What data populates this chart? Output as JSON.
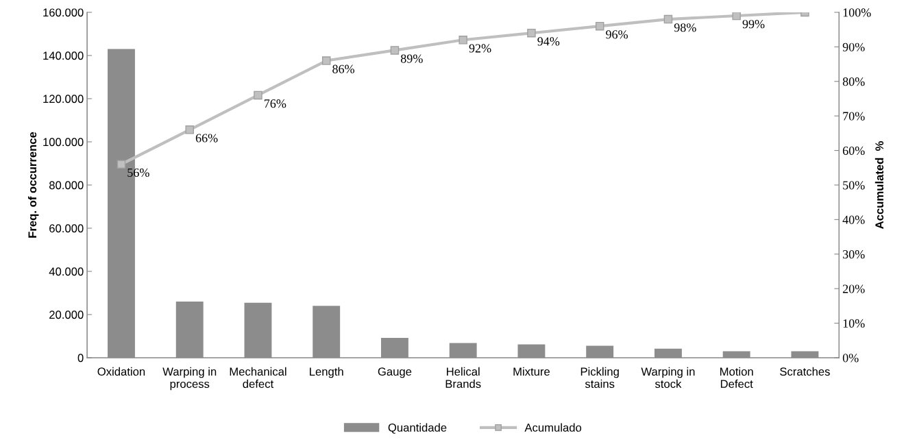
{
  "chart_data": {
    "type": "bar",
    "ylabel": "Freq. of occurrence",
    "y2label": "Accumulated  %",
    "categories": [
      "Oxidation",
      "Warping in\nprocess",
      "Mechanical\ndefect",
      "Length",
      "Gauge",
      "Helical\nBrands",
      "Mixture",
      "Pickling\nstains",
      "Warping in\nstock",
      "Motion\nDefect",
      "Scratches"
    ],
    "series": [
      {
        "name": "Quantidade",
        "color": "#8c8c8c",
        "values": [
          143000,
          26000,
          25500,
          24000,
          9200,
          6800,
          6200,
          5500,
          4200,
          3000,
          3000
        ]
      },
      {
        "name": "Acumulado",
        "type": "line",
        "axis": "y2",
        "color": "#bfbfbf",
        "marker": "square",
        "values": [
          56,
          66,
          76,
          86,
          89,
          92,
          94,
          96,
          98,
          99,
          100
        ],
        "value_labels": [
          "56%",
          "66%",
          "76%",
          "86%",
          "89%",
          "92%",
          "94%",
          "96%",
          "98%",
          "99%",
          null
        ]
      }
    ],
    "ylim": [
      0,
      160000
    ],
    "yticks": [
      {
        "value": 0,
        "label": "0"
      },
      {
        "value": 20000,
        "label": "20.000"
      },
      {
        "value": 40000,
        "label": "40.000"
      },
      {
        "value": 60000,
        "label": "60.000"
      },
      {
        "value": 80000,
        "label": "80.000"
      },
      {
        "value": 100000,
        "label": "100.000"
      },
      {
        "value": 120000,
        "label": "120.000"
      },
      {
        "value": 140000,
        "label": "140.000"
      },
      {
        "value": 160000,
        "label": "160.000"
      }
    ],
    "y2lim": [
      0,
      100
    ],
    "y2ticks": [
      {
        "value": 0,
        "label": "0%"
      },
      {
        "value": 10,
        "label": "10%"
      },
      {
        "value": 20,
        "label": "20%"
      },
      {
        "value": 30,
        "label": "30%"
      },
      {
        "value": 40,
        "label": "40%"
      },
      {
        "value": 50,
        "label": "50%"
      },
      {
        "value": 60,
        "label": "60%"
      },
      {
        "value": 70,
        "label": "70%"
      },
      {
        "value": 80,
        "label": "80%"
      },
      {
        "value": 90,
        "label": "90%"
      },
      {
        "value": 100,
        "label": "100%"
      }
    ],
    "grid": false,
    "legend": "bottom"
  }
}
